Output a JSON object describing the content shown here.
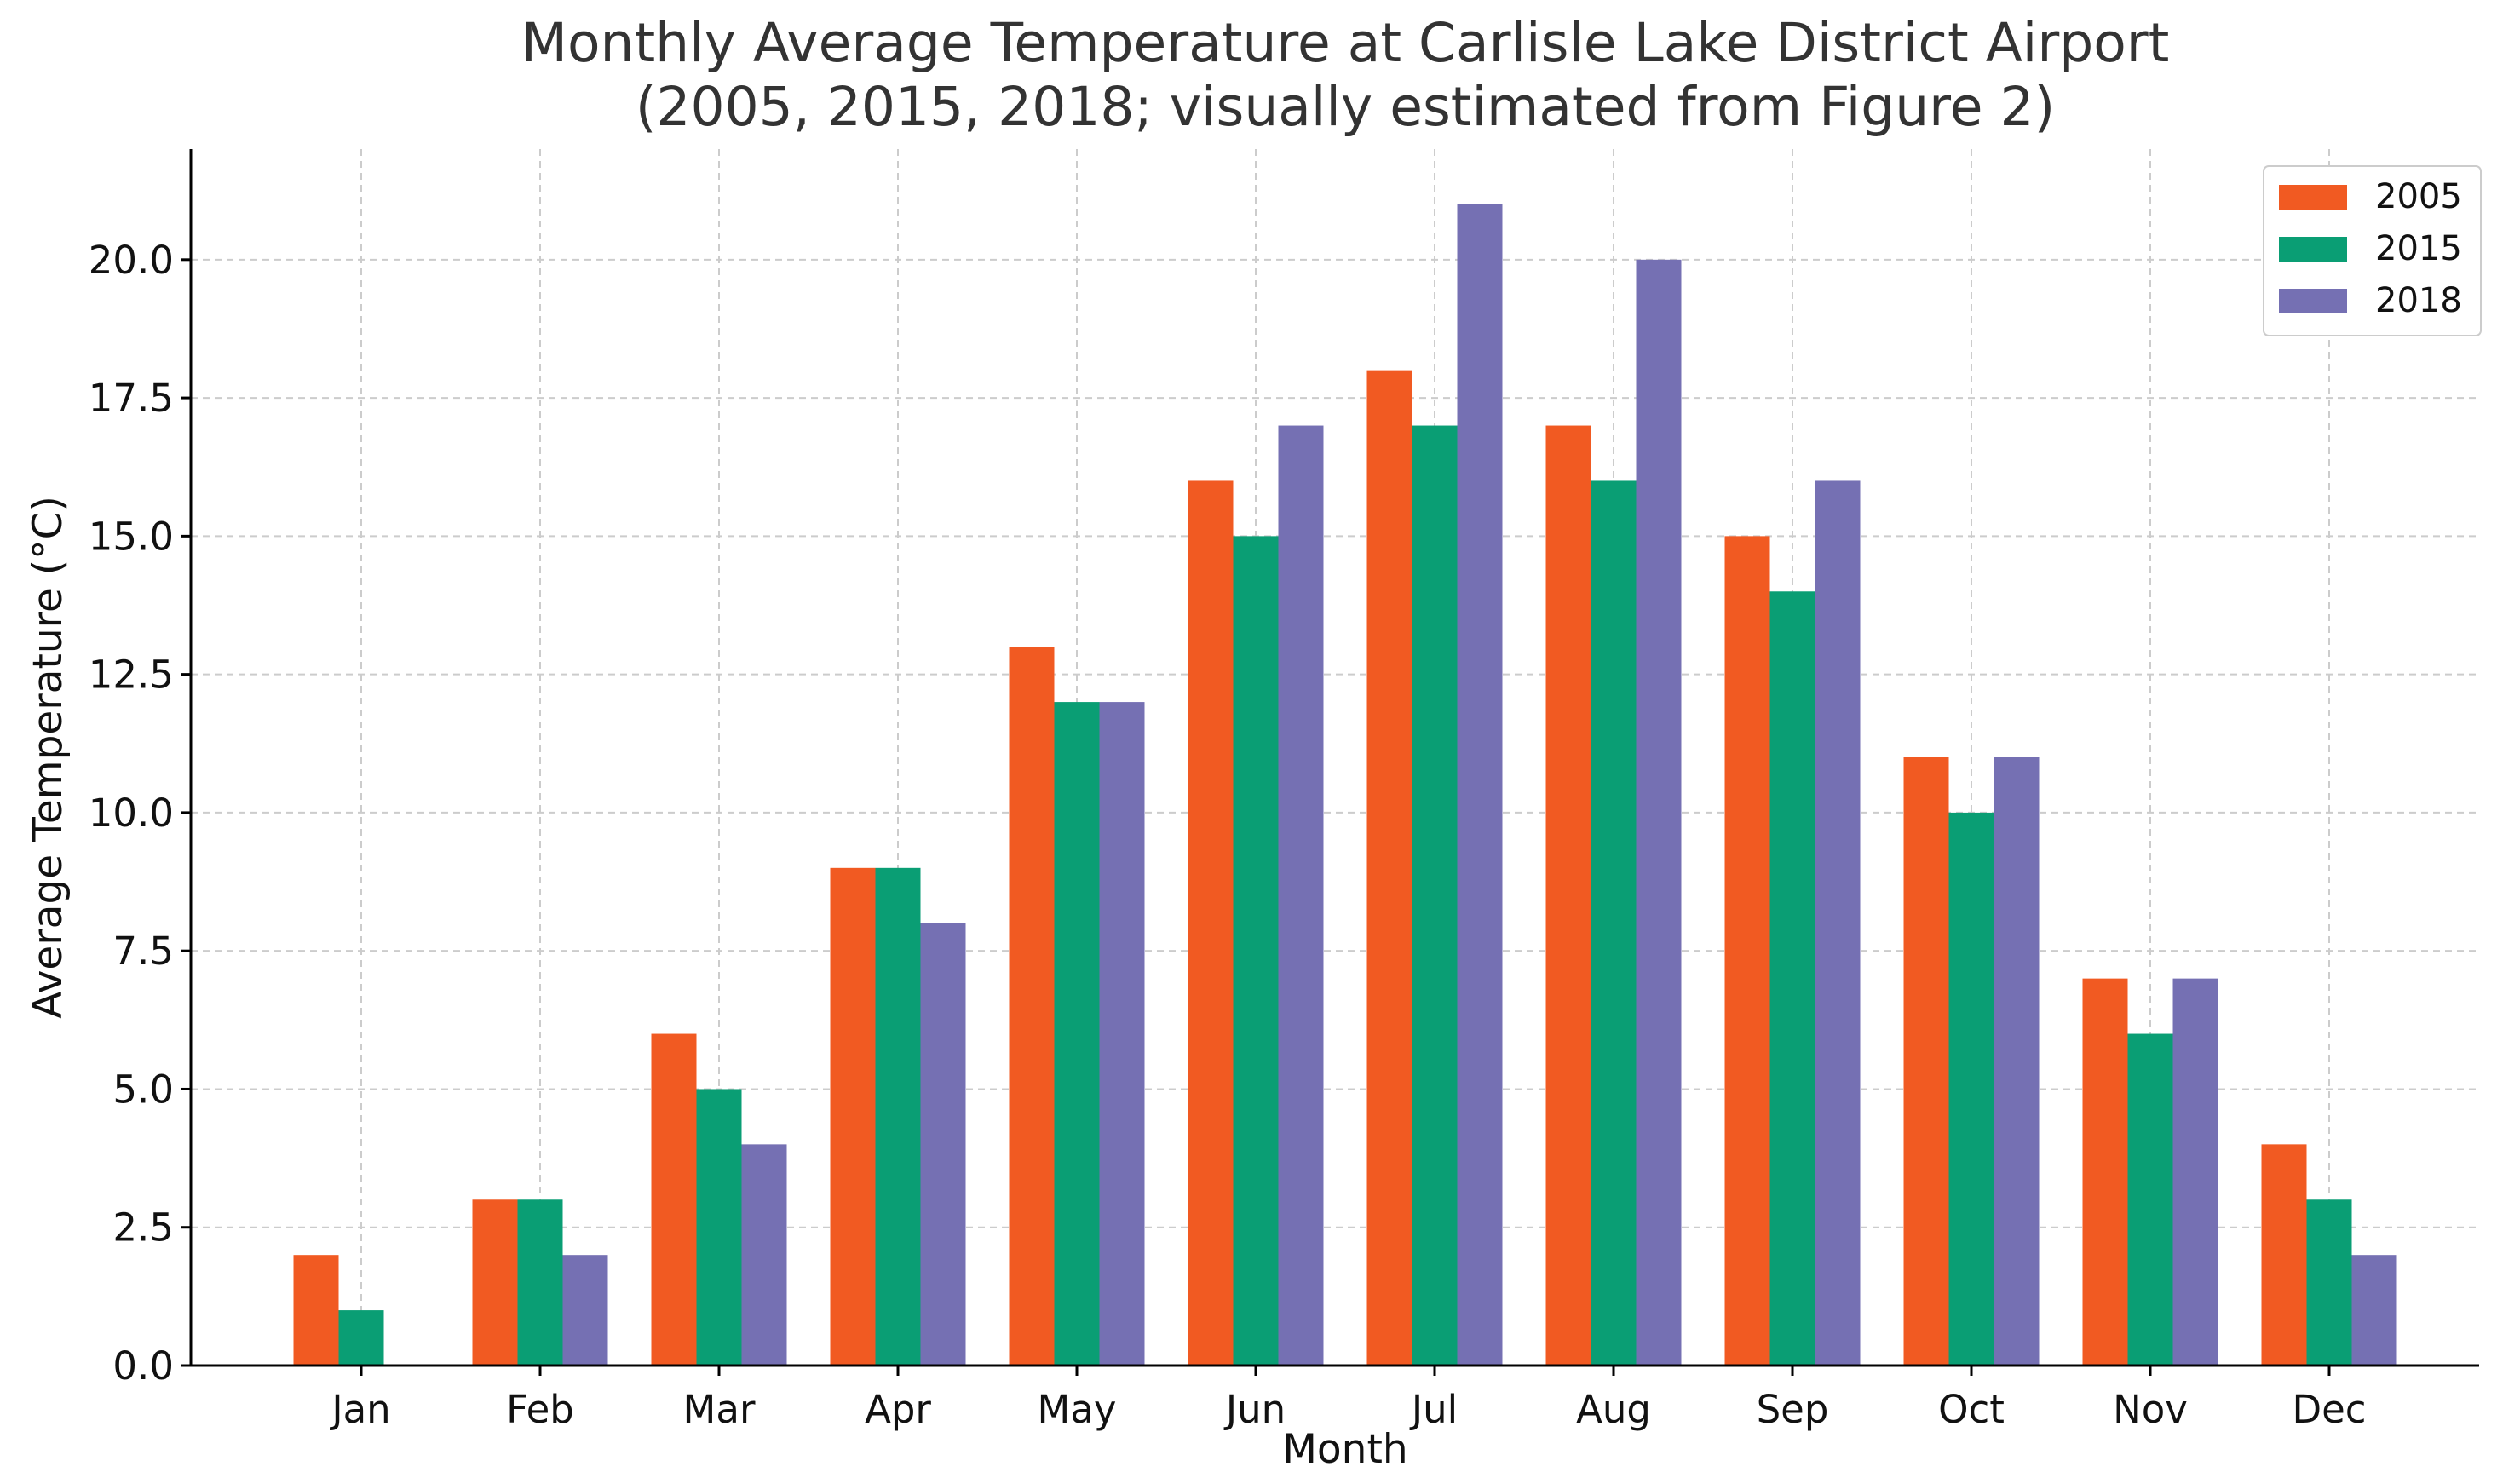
{
  "chart_data": {
    "type": "bar",
    "title": "Monthly Average Temperature at Carlisle Lake District Airport",
    "subtitle": "(2005, 2015, 2018; visually estimated from Figure 2)",
    "xlabel": "Month",
    "ylabel": "Average Temperature (°C)",
    "categories": [
      "Jan",
      "Feb",
      "Mar",
      "Apr",
      "May",
      "Jun",
      "Jul",
      "Aug",
      "Sep",
      "Oct",
      "Nov",
      "Dec"
    ],
    "series": [
      {
        "name": "2005",
        "color": "#F15A22",
        "values": [
          2,
          3,
          6,
          9,
          13,
          16,
          18,
          17,
          15,
          11,
          7,
          4
        ]
      },
      {
        "name": "2015",
        "color": "#0A9E74",
        "values": [
          1,
          3,
          5,
          9,
          12,
          15,
          17,
          16,
          14,
          10,
          6,
          3
        ]
      },
      {
        "name": "2018",
        "color": "#7570B3",
        "values": [
          0,
          2,
          4,
          8,
          12,
          17,
          21,
          20,
          16,
          11,
          7,
          2
        ]
      }
    ],
    "ylim": [
      0,
      22
    ],
    "yticks": [
      "0.0",
      "2.5",
      "5.0",
      "7.5",
      "10.0",
      "12.5",
      "15.0",
      "17.5",
      "20.0"
    ],
    "grid": true,
    "legend_position": "top-right"
  }
}
